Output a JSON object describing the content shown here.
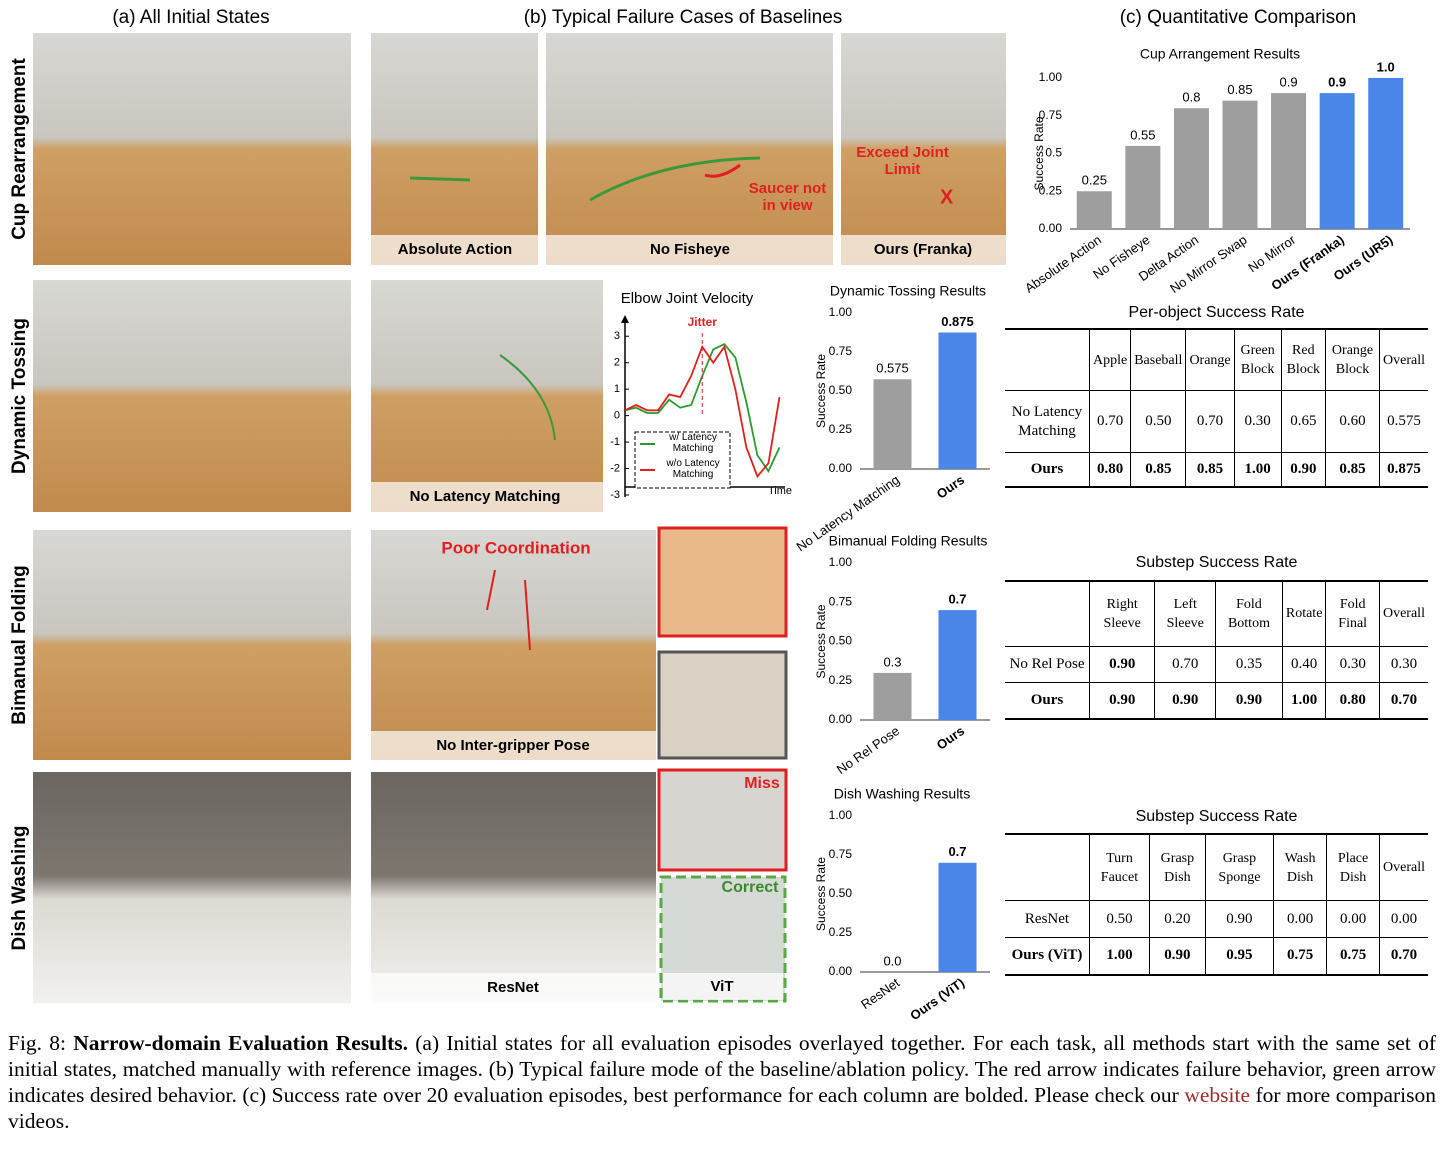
{
  "column_headers": [
    "(a) All Initial States",
    "(b) Typical Failure Cases of Baselines",
    "(c) Quantitative Comparison"
  ],
  "row_labels": [
    "Cup Rearrangement",
    "Dynamic Tossing",
    "Bimanual Folding",
    "Dish Washing"
  ],
  "image_captions": [
    "Absolute Action",
    "No Fisheye",
    "Ours (Franka)",
    "No Latency Matching",
    "No Inter-gripper Pose",
    "ResNet",
    "ViT"
  ],
  "annotations": [
    "Saucer not in view",
    "Exceed Joint Limit",
    "X",
    "Poor Coordination",
    "Miss",
    "Correct"
  ],
  "chart_data": [
    {
      "type": "bar",
      "title": "Cup Arrangement Results",
      "ylabel": "Success Rate",
      "categories": [
        "Absolute Action",
        "No Fisheye",
        "Delta Action",
        "No Mirror Swap",
        "No Mirror",
        "Ours (Franka)",
        "Ours (UR5)"
      ],
      "values": [
        0.25,
        0.55,
        0.8,
        0.85,
        0.9,
        0.9,
        1
      ],
      "value_labels": [
        "0.25",
        "0.55",
        "0.8",
        "0.85",
        "0.9",
        "0.9",
        "1.0"
      ],
      "colors": [
        "#9e9e9e",
        "#9e9e9e",
        "#9e9e9e",
        "#9e9e9e",
        "#9e9e9e",
        "#4a86e8",
        "#4a86e8"
      ],
      "bold": [
        false,
        false,
        false,
        false,
        false,
        true,
        true
      ],
      "ylim": [
        0,
        1
      ],
      "yticks": [
        {
          "value": 0,
          "label": "0.00"
        },
        {
          "value": 0.25,
          "label": "0.25"
        },
        {
          "value": 0.5,
          "label": "0.5"
        },
        {
          "value": 0.75,
          "label": "0.75"
        },
        {
          "value": 1,
          "label": "1.00"
        }
      ]
    },
    {
      "type": "line",
      "title": "Elbow Joint Velocity",
      "annotation": "Jitter",
      "xlabel": "Time",
      "x": [
        0,
        1,
        2,
        3,
        4,
        5,
        6,
        7,
        8,
        9,
        10,
        11,
        12,
        13,
        14
      ],
      "xlim": [
        0,
        14.5
      ],
      "ylim": [
        -3,
        3.5
      ],
      "yticks": [
        -3,
        -2,
        -1,
        0,
        1,
        2,
        3
      ],
      "series": [
        {
          "name": "w/ Latency Matching",
          "color": "#2e9a2e",
          "values": [
            0.2,
            0.3,
            0.1,
            0.1,
            0.6,
            0.3,
            0.4,
            1.5,
            2.5,
            2.7,
            2.2,
            0.5,
            -1.5,
            -2.1,
            -1.2
          ]
        },
        {
          "name": "w/o Latency Matching",
          "color": "#e02020",
          "values": [
            0.2,
            0.4,
            0.2,
            0.2,
            0.8,
            0.7,
            1.5,
            2.6,
            2.0,
            2.6,
            1.0,
            -1.2,
            -2.3,
            -1.8,
            0.7
          ]
        }
      ]
    },
    {
      "type": "bar",
      "title": "Dynamic Tossing Results",
      "ylabel": "Success Rate",
      "categories": [
        "No Latency Matching",
        "Ours"
      ],
      "values": [
        0.575,
        0.875
      ],
      "colors": [
        "#9e9e9e",
        "#4a86e8"
      ],
      "bold": [
        false,
        true
      ],
      "ylim": [
        0,
        1
      ],
      "yticks": [
        {
          "value": 0,
          "label": "0.00"
        },
        {
          "value": 0.25,
          "label": "0.25"
        },
        {
          "value": 0.5,
          "label": "0.50"
        },
        {
          "value": 0.75,
          "label": "0.75"
        },
        {
          "value": 1,
          "label": "1.00"
        }
      ]
    },
    {
      "type": "bar",
      "title": "Bimanual Folding Results",
      "ylabel": "Success Rate",
      "categories": [
        "No Rel Pose",
        "Ours"
      ],
      "values": [
        0.3,
        0.7
      ],
      "colors": [
        "#9e9e9e",
        "#4a86e8"
      ],
      "bold": [
        false,
        true
      ],
      "ylim": [
        0,
        1
      ],
      "yticks": [
        {
          "value": 0,
          "label": "0.00"
        },
        {
          "value": 0.25,
          "label": "0.25"
        },
        {
          "value": 0.5,
          "label": "0.50"
        },
        {
          "value": 0.75,
          "label": "0.75"
        },
        {
          "value": 1,
          "label": "1.00"
        }
      ]
    },
    {
      "type": "bar",
      "title": "Dish Washing Results",
      "ylabel": "Success Rate",
      "categories": [
        "ResNet",
        "Ours (ViT)"
      ],
      "values": [
        0,
        0.7
      ],
      "value_labels": [
        "0.0",
        "0.7"
      ],
      "colors": [
        "#9e9e9e",
        "#4a86e8"
      ],
      "bold": [
        false,
        true
      ],
      "ylim": [
        0,
        1
      ],
      "yticks": [
        {
          "value": 0,
          "label": "0.00"
        },
        {
          "value": 0.25,
          "label": "0.25"
        },
        {
          "value": 0.5,
          "label": "0.50"
        },
        {
          "value": 0.75,
          "label": "0.75"
        },
        {
          "value": 1,
          "label": "1.00"
        }
      ]
    }
  ],
  "tables": [
    {
      "title": "Per-object Success Rate",
      "header": [
        "Apple",
        "Baseball",
        "Orange",
        "Green Block",
        "Red Block",
        "Orange Block",
        "Overall"
      ],
      "rows": [
        [
          "No Latency Matching",
          "0.70",
          "0.50",
          "0.70",
          "0.30",
          "0.65",
          "0.60",
          "0.575"
        ],
        [
          "Ours",
          "0.80",
          "0.85",
          "0.85",
          "1.00",
          "0.90",
          "0.85",
          "0.875"
        ]
      ],
      "bold": [
        [
          false,
          false,
          false,
          false,
          false,
          false,
          false,
          false
        ],
        [
          true,
          true,
          true,
          true,
          true,
          true,
          true,
          true
        ]
      ]
    },
    {
      "title": "Substep Success Rate",
      "header": [
        "Right Sleeve",
        "Left Sleeve",
        "Fold Bottom",
        "Rotate",
        "Fold Final",
        "Overall"
      ],
      "rows": [
        [
          "No Rel Pose",
          "0.90",
          "0.70",
          "0.35",
          "0.40",
          "0.30",
          "0.30"
        ],
        [
          "Ours",
          "0.90",
          "0.90",
          "0.90",
          "1.00",
          "0.80",
          "0.70"
        ]
      ],
      "bold": [
        [
          false,
          true,
          false,
          false,
          false,
          false,
          false
        ],
        [
          true,
          true,
          true,
          true,
          true,
          true,
          true
        ]
      ]
    },
    {
      "title": "Substep Success Rate",
      "header": [
        "Turn Faucet",
        "Grasp Dish",
        "Grasp Sponge",
        "Wash Dish",
        "Place Dish",
        "Overall"
      ],
      "rows": [
        [
          "ResNet",
          "0.50",
          "0.20",
          "0.90",
          "0.00",
          "0.00",
          "0.00"
        ],
        [
          "Ours (ViT)",
          "1.00",
          "0.90",
          "0.95",
          "0.75",
          "0.75",
          "0.70"
        ]
      ],
      "bold": [
        [
          false,
          false,
          false,
          false,
          false,
          false,
          false
        ],
        [
          true,
          true,
          true,
          true,
          true,
          true,
          true
        ]
      ]
    }
  ],
  "caption": {
    "label": "Fig. 8:",
    "title": "Narrow-domain Evaluation Results.",
    "text": "(a) Initial states for all evaluation episodes overlayed together. For each task, all methods start with the same set of initial states, matched manually with reference images. (b) Typical failure mode of the baseline/ablation policy. The red arrow indicates failure behavior, green arrow indicates desired behavior. (c) Success rate over 20 evaluation episodes, best performance for each column are bolded. Please check our",
    "link": "website",
    "text_end": "for more comparison videos."
  }
}
